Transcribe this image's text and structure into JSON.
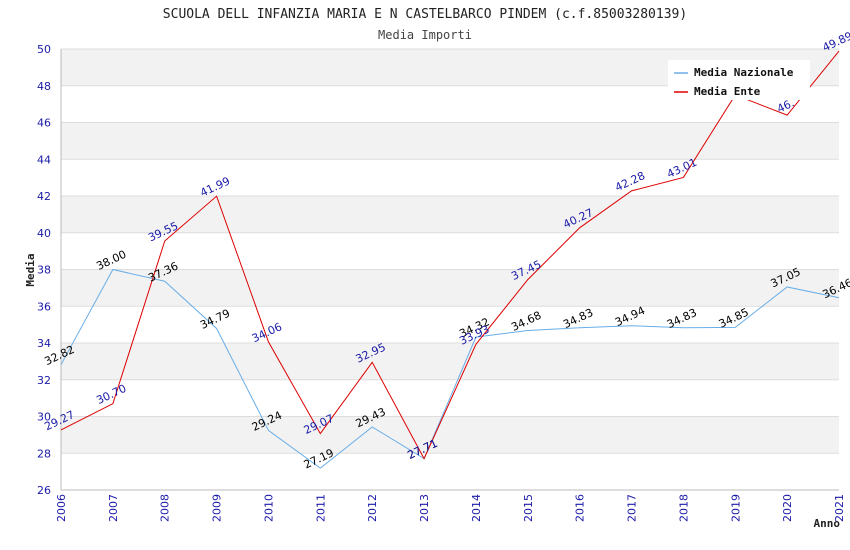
{
  "chart_data": {
    "type": "line",
    "title": "SCUOLA DELL INFANZIA MARIA E N CASTELBARCO PINDEM (c.f.85003280139)",
    "subtitle": "Media Importi",
    "xlabel": "Anno",
    "ylabel": "Media",
    "ylim": [
      26,
      50
    ],
    "yticks": [
      "26",
      "28",
      "30",
      "32",
      "34",
      "36",
      "38",
      "40",
      "42",
      "44",
      "46",
      "48",
      "50"
    ],
    "x": [
      "2006",
      "2007",
      "2008",
      "2009",
      "2010",
      "2011",
      "2012",
      "2013",
      "2014",
      "2015",
      "2016",
      "2017",
      "2018",
      "2019",
      "2020",
      "2021"
    ],
    "grid": true,
    "legend_position": "top-right",
    "series": [
      {
        "name": "Media Nazionale",
        "color": "#6aaee8",
        "label_color": "#000000",
        "values": [
          32.82,
          38.0,
          37.36,
          34.79,
          29.24,
          27.19,
          29.43,
          27.71,
          34.32,
          34.68,
          34.83,
          34.94,
          34.83,
          34.85,
          37.05,
          36.46
        ],
        "labels": [
          "32.82",
          "38.00",
          "37.36",
          "34.79",
          "29.24",
          "27.19",
          "29.43",
          "27.71",
          "34.32",
          "34.68",
          "34.83",
          "34.94",
          "34.83",
          "34.85",
          "37.05",
          "36.46"
        ]
      },
      {
        "name": "Media Ente",
        "color": "#dd0000",
        "label_color": "#1a1aa8",
        "values": [
          29.27,
          30.7,
          39.55,
          41.99,
          34.06,
          29.07,
          32.95,
          27.71,
          33.93,
          37.45,
          40.27,
          42.28,
          43.01,
          47.5,
          46.4,
          49.89
        ],
        "labels": [
          "29.27",
          "30.70",
          "39.55",
          "41.99",
          "34.06",
          "29.07",
          "32.95",
          "27.71",
          "33.93",
          "37.45",
          "40.27",
          "42.28",
          "43.01",
          "",
          "46.",
          "49.89"
        ]
      }
    ]
  }
}
